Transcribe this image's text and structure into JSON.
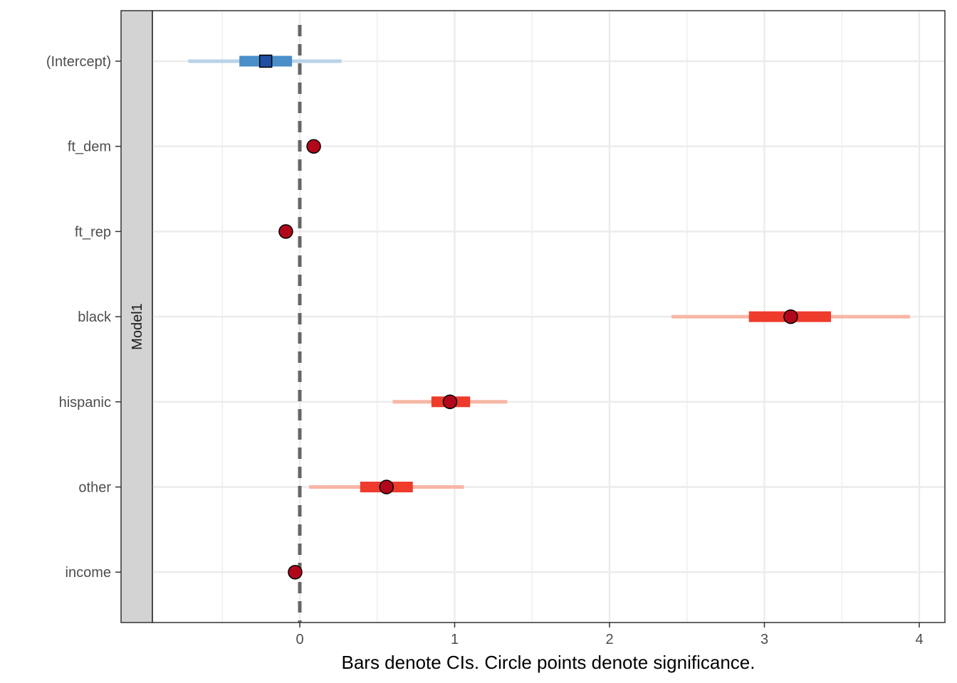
{
  "chart_data": {
    "type": "coefficient-plot",
    "panel_label": "Model1",
    "xlabel": "Bars denote CIs. Circle points denote significance.",
    "ylabel": "",
    "xlim": [
      -1.15,
      4.15
    ],
    "x_ticks": [
      0,
      1,
      2,
      3,
      4
    ],
    "x_minor_ticks": [
      -0.5,
      0.5,
      1.5,
      2.5,
      3.5
    ],
    "reference_line": 0,
    "grid": true,
    "terms": [
      {
        "term": "(Intercept)",
        "estimate": -0.22,
        "ci_inner": [
          -0.39,
          -0.05
        ],
        "ci_outer": [
          -0.72,
          0.27
        ],
        "significant": false
      },
      {
        "term": "ft_dem",
        "estimate": 0.09,
        "ci_inner": [
          0.09,
          0.09
        ],
        "ci_outer": [
          0.09,
          0.09
        ],
        "significant": true
      },
      {
        "term": "ft_rep",
        "estimate": -0.09,
        "ci_inner": [
          -0.09,
          -0.09
        ],
        "ci_outer": [
          -0.09,
          -0.09
        ],
        "significant": true
      },
      {
        "term": "black",
        "estimate": 3.17,
        "ci_inner": [
          2.9,
          3.43
        ],
        "ci_outer": [
          2.4,
          3.94
        ],
        "significant": true
      },
      {
        "term": "hispanic",
        "estimate": 0.97,
        "ci_inner": [
          0.85,
          1.1
        ],
        "ci_outer": [
          0.6,
          1.34
        ],
        "significant": true
      },
      {
        "term": "other",
        "estimate": 0.56,
        "ci_inner": [
          0.39,
          0.73
        ],
        "ci_outer": [
          0.06,
          1.06
        ],
        "significant": true
      },
      {
        "term": "income",
        "estimate": -0.03,
        "ci_inner": [
          -0.03,
          -0.03
        ],
        "ci_outer": [
          -0.03,
          -0.03
        ],
        "significant": true
      }
    ],
    "colors": {
      "sig_outer": "#f7b6a5",
      "sig_inner": "#ef3b2c",
      "sig_point": "#b2071b",
      "nonsig_outer": "#b9d3e8",
      "nonsig_inner": "#4a8fc9",
      "nonsig_point": "#1f4fa3",
      "grid": "#ebebeb",
      "strip_fill": "#d3d3d3",
      "reference_line": "#666666"
    }
  }
}
